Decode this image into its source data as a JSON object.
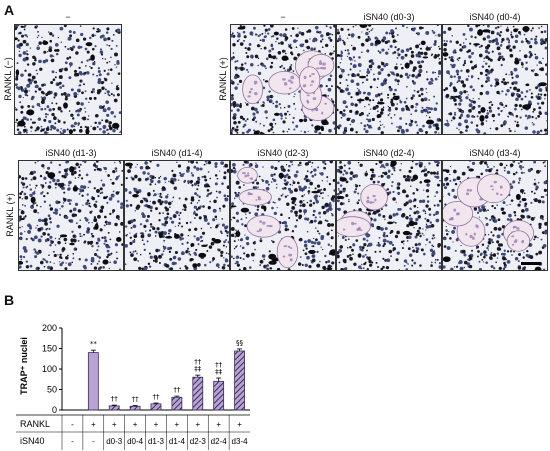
{
  "panel_a_label": "A",
  "panel_b_label": "B",
  "row1": {
    "row_labels": [
      "RANKL (−)",
      "RANKL (+)"
    ],
    "col_labels": [
      "−",
      "−",
      "iSN40 (d0-3)",
      "iSN40 (d0-4)"
    ]
  },
  "row2": {
    "row_label": "RANKL (+)",
    "col_labels": [
      "iSN40 (d1-3)",
      "iSN40 (d1-4)",
      "iSN40 (d2-3)",
      "iSN40 (d2-4)",
      "iSN40 (d3-4)"
    ]
  },
  "chart_data": {
    "type": "bar",
    "ylabel": "TRAP⁺ nuclei",
    "ylim": [
      0,
      200
    ],
    "yticks": [
      "0",
      "50",
      "100",
      "150",
      "200"
    ],
    "values": [
      0,
      140,
      10,
      9,
      15,
      31,
      80,
      70,
      144
    ],
    "errors": [
      0,
      6,
      2,
      2,
      2,
      3,
      5,
      8,
      5
    ],
    "significance": [
      [
        "",
        ""
      ],
      [
        "",
        "**"
      ],
      [
        "",
        "††"
      ],
      [
        "",
        "††"
      ],
      [
        "",
        "††"
      ],
      [
        "",
        "††"
      ],
      [
        "††",
        "‡‡"
      ],
      [
        "††",
        "‡‡"
      ],
      [
        "",
        "§§"
      ]
    ],
    "bar_styles": [
      "none",
      "solid",
      "hatched",
      "hatched",
      "hatched",
      "hatched",
      "hatched",
      "hatched",
      "hatched"
    ],
    "colors": {
      "bar_fill": "#b8a3d4",
      "bar_edge": "#3a2e57",
      "hatch": "#3a2e57"
    },
    "table": {
      "rows": [
        {
          "name": "RANKL",
          "values": [
            "-",
            "+",
            "+",
            "+",
            "+",
            "+",
            "+",
            "+",
            "+"
          ]
        },
        {
          "name": "iSN40",
          "values": [
            "-",
            "-",
            "d0-3",
            "d0-4",
            "d1-3",
            "d1-4",
            "d2-3",
            "d2-4",
            "d3-4"
          ]
        }
      ]
    }
  }
}
